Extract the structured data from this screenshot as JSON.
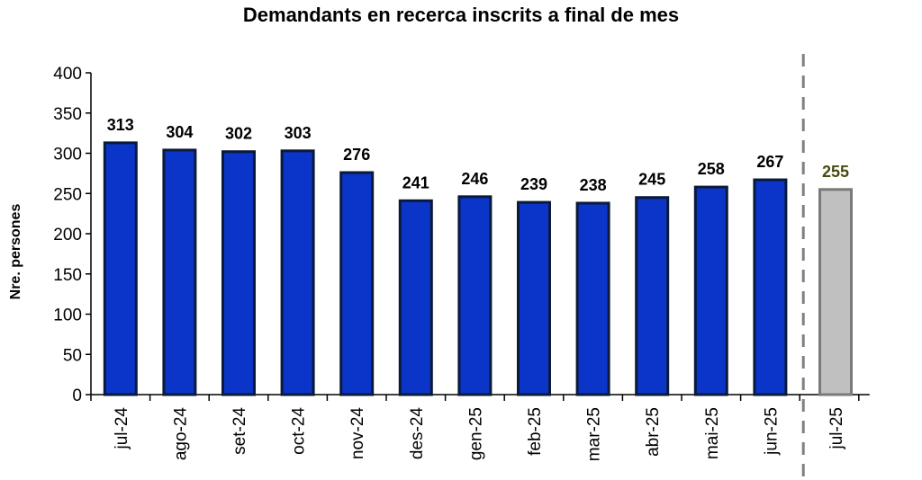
{
  "chart_data": {
    "type": "bar",
    "title": "Demandants en recerca inscrits a final de mes",
    "xlabel": "",
    "ylabel": "Nre. persones",
    "ylim": [
      0,
      400
    ],
    "yticks": [
      0,
      50,
      100,
      150,
      200,
      250,
      300,
      350,
      400
    ],
    "categories": [
      "jul-24",
      "ago-24",
      "set-24",
      "oct-24",
      "nov-24",
      "des-24",
      "gen-25",
      "feb-25",
      "mar-25",
      "abr-25",
      "mai-25",
      "jun-25",
      "jul-25"
    ],
    "values": [
      313,
      304,
      302,
      303,
      276,
      241,
      246,
      239,
      238,
      245,
      258,
      267,
      255
    ],
    "highlight_index": 12,
    "grid": false,
    "colors": {
      "bar": "#0a35c8",
      "bar_border": "#0b1a3a",
      "highlight_bar": "#c0c0c0",
      "highlight_border": "#7a7a7a",
      "highlight_label": "#4a4a10",
      "separator": "#808080"
    }
  }
}
